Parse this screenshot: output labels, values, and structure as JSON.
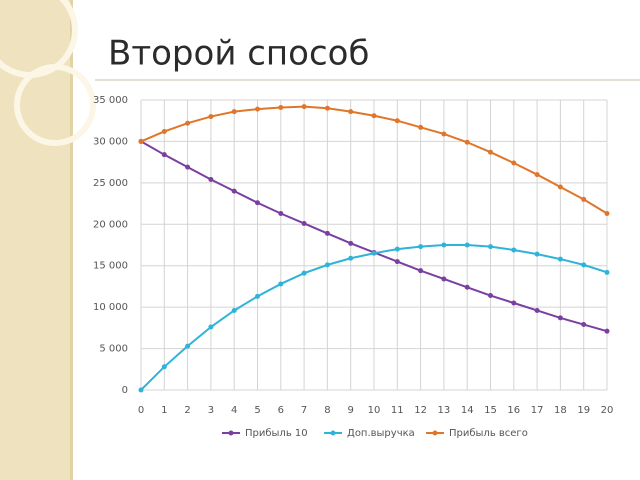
{
  "title": "Второй способ",
  "chart_data": {
    "type": "line",
    "x": [
      0,
      1,
      2,
      3,
      4,
      5,
      6,
      7,
      8,
      9,
      10,
      11,
      12,
      13,
      14,
      15,
      16,
      17,
      18,
      19,
      20
    ],
    "xlim": [
      0,
      20
    ],
    "xticks": [
      0,
      1,
      2,
      3,
      4,
      5,
      6,
      7,
      8,
      9,
      10,
      11,
      12,
      13,
      14,
      15,
      16,
      17,
      18,
      19,
      20
    ],
    "ylim": [
      0,
      35000
    ],
    "yticks": [
      0,
      {
        "value": 5000,
        "label": "5 000"
      },
      {
        "value": 10000,
        "label": "10 000"
      },
      {
        "value": 15000,
        "label": "15 000"
      },
      {
        "value": 20000,
        "label": "20 000"
      },
      {
        "value": 25000,
        "label": "25 000"
      },
      {
        "value": 30000,
        "label": "30 000"
      },
      {
        "value": 35000,
        "label": "35 000"
      }
    ],
    "grid": true,
    "legend": "bottom",
    "series": [
      {
        "name": "Прибыль 10",
        "color": "#7a3fa0",
        "values": [
          30000,
          28400,
          26900,
          25400,
          24000,
          22600,
          21300,
          20100,
          18900,
          17700,
          16600,
          15500,
          14400,
          13400,
          12400,
          11400,
          10500,
          9600,
          8700,
          7900,
          7100
        ]
      },
      {
        "name": "Доп.выручка",
        "color": "#2fb3d9",
        "values": [
          0,
          2800,
          5300,
          7600,
          9600,
          11300,
          12800,
          14100,
          15100,
          15900,
          16500,
          17000,
          17300,
          17500,
          17500,
          17300,
          16900,
          16400,
          15800,
          15100,
          14200
        ]
      },
      {
        "name": "Прибыль всего",
        "color": "#e0762a",
        "values": [
          30000,
          31200,
          32200,
          33000,
          33600,
          33900,
          34100,
          34200,
          34000,
          33600,
          33100,
          32500,
          31700,
          30900,
          29900,
          28700,
          27400,
          26000,
          24500,
          23000,
          21300
        ]
      }
    ]
  }
}
